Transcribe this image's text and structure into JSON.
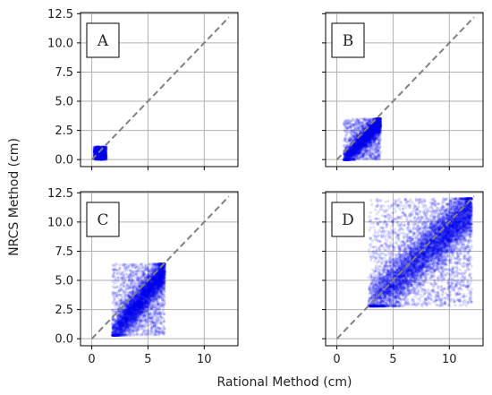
{
  "chart_data": [
    {
      "type": "scatter",
      "panel_label": "A",
      "xlim": [
        -1.0,
        13.0
      ],
      "ylim": [
        -0.6,
        12.6
      ],
      "x_ticks": [
        0,
        5,
        10
      ],
      "y_ticks": [
        0.0,
        2.5,
        5.0,
        7.5,
        10.0,
        12.5
      ],
      "x_ticks_labeled": false,
      "y_ticks_labeled": true,
      "grid": true,
      "reference_line": {
        "style": "dashed",
        "color": "#808080",
        "from": [
          0,
          0
        ],
        "to": [
          12.2,
          12.2
        ]
      },
      "series": [
        {
          "color": "#0000ee",
          "x_range": [
            0.2,
            1.3
          ],
          "y_range": [
            0.0,
            1.1
          ],
          "shape": "dense_block",
          "density": 1200
        }
      ]
    },
    {
      "type": "scatter",
      "panel_label": "B",
      "xlim": [
        -1.0,
        13.0
      ],
      "ylim": [
        -0.6,
        12.6
      ],
      "x_ticks": [
        0,
        5,
        10
      ],
      "y_ticks": [
        0.0,
        2.5,
        5.0,
        7.5,
        10.0,
        12.5
      ],
      "x_ticks_labeled": false,
      "y_ticks_labeled": false,
      "grid": true,
      "reference_line": {
        "style": "dashed",
        "color": "#808080",
        "from": [
          0,
          0
        ],
        "to": [
          12.2,
          12.2
        ]
      },
      "series": [
        {
          "color": "#0000ee",
          "x_range": [
            0.6,
            3.9
          ],
          "y_range": [
            0.0,
            3.5
          ],
          "shape": "band",
          "density": 3500
        }
      ]
    },
    {
      "type": "scatter",
      "panel_label": "C",
      "xlim": [
        -1.0,
        13.0
      ],
      "ylim": [
        -0.6,
        12.6
      ],
      "x_ticks": [
        0,
        5,
        10
      ],
      "y_ticks": [
        0.0,
        2.5,
        5.0,
        7.5,
        10.0,
        12.5
      ],
      "x_ticks_labeled": true,
      "y_ticks_labeled": true,
      "grid": true,
      "reference_line": {
        "style": "dashed",
        "color": "#808080",
        "from": [
          0,
          0
        ],
        "to": [
          12.2,
          12.2
        ]
      },
      "series": [
        {
          "color": "#0000ee",
          "x_range": [
            1.8,
            6.5
          ],
          "y_range": [
            0.3,
            6.4
          ],
          "shape": "band",
          "density": 5200
        }
      ]
    },
    {
      "type": "scatter",
      "panel_label": "D",
      "xlim": [
        -1.0,
        13.0
      ],
      "ylim": [
        -0.6,
        12.6
      ],
      "x_ticks": [
        0,
        5,
        10
      ],
      "y_ticks": [
        0.0,
        2.5,
        5.0,
        7.5,
        10.0,
        12.5
      ],
      "x_ticks_labeled": true,
      "y_ticks_labeled": false,
      "grid": true,
      "reference_line": {
        "style": "dashed",
        "color": "#808080",
        "from": [
          0,
          0
        ],
        "to": [
          12.2,
          12.2
        ]
      },
      "series": [
        {
          "color": "#0000ee",
          "x_range": [
            2.8,
            12.0
          ],
          "y_range": [
            2.8,
            12.0
          ],
          "shape": "band",
          "density": 8000
        }
      ]
    }
  ],
  "labels": {
    "xlabel": "Rational Method (cm)",
    "ylabel": "NRCS Method (cm)"
  },
  "style": {
    "point_color": "#0000ee",
    "grid_color": "#b0b0b0",
    "diagonal_color": "#808080"
  }
}
